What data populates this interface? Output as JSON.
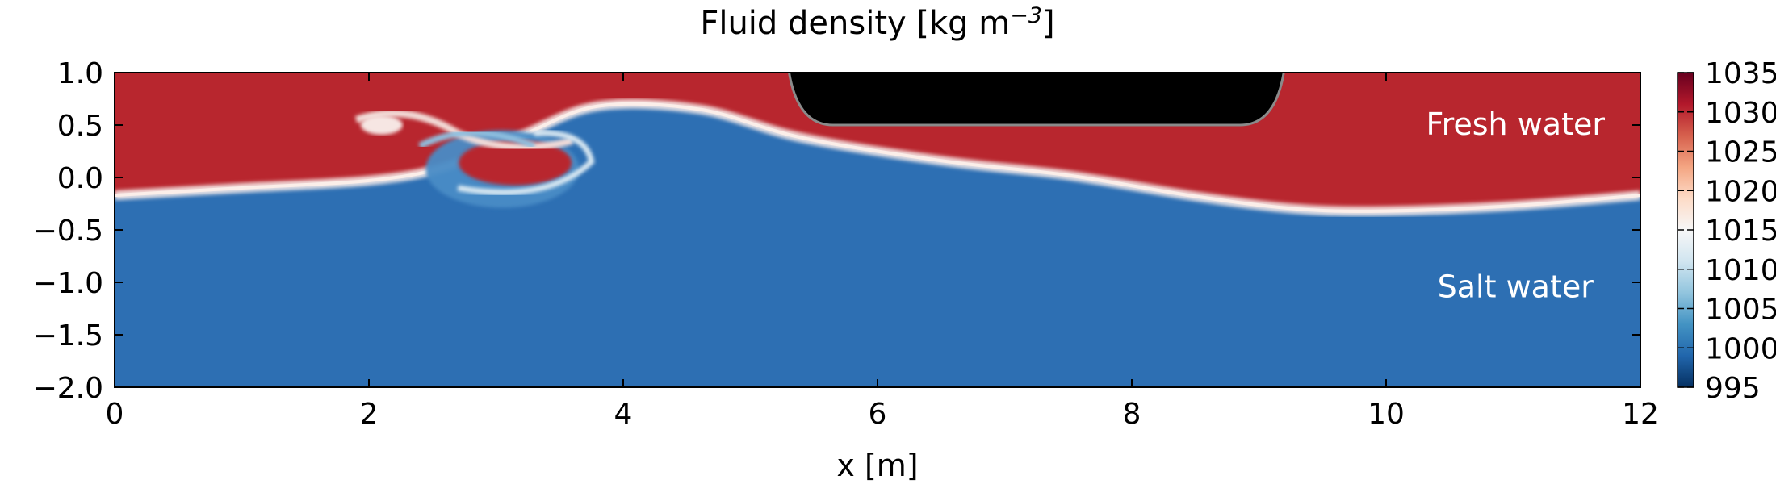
{
  "chart_data": {
    "type": "heatmap",
    "title": "Fluid density [kg m",
    "title_superscript": "−3",
    "title_suffix": "]",
    "xlabel": "x [m]",
    "ylabel": "",
    "xlim": [
      0,
      12
    ],
    "ylim": [
      -2.0,
      1.0
    ],
    "x_ticks": [
      0,
      2,
      4,
      6,
      8,
      10,
      12
    ],
    "x_tick_labels": [
      "0",
      "2",
      "4",
      "6",
      "8",
      "10",
      "12"
    ],
    "y_ticks": [
      1.0,
      0.5,
      0.0,
      -0.5,
      -1.0,
      -1.5,
      -2.0
    ],
    "y_tick_labels": [
      "1.0",
      "0.5",
      "0.0",
      "−0.5",
      "−1.0",
      "−1.5",
      "−2.0"
    ],
    "colorbar": {
      "range": [
        995,
        1035
      ],
      "ticks": [
        1035,
        1030,
        1025,
        1020,
        1015,
        1010,
        1005,
        1000,
        995
      ],
      "tick_labels": [
        "1035",
        "1030",
        "1025",
        "1020",
        "1015",
        "1010",
        "1005",
        "1000",
        "995"
      ],
      "colormap": "RdBu_r",
      "colors": [
        "#053061",
        "#2166ac",
        "#4393c3",
        "#92c5de",
        "#d1e5f0",
        "#f7f7f7",
        "#fddbc7",
        "#f4a582",
        "#d6604d",
        "#b2182b",
        "#67001f"
      ]
    },
    "upper_layer_color": "#b8262e",
    "lower_layer_color": "#2d6fb3",
    "obstacle_color": "#000000",
    "interface": {
      "x": [
        0,
        1,
        2,
        2.6,
        3.2,
        3.8,
        4.6,
        5.4,
        6.5,
        7.5,
        8.5,
        9.3,
        10.0,
        11.0,
        12.0
      ],
      "y": [
        -0.17,
        -0.1,
        -0.03,
        0.1,
        0.4,
        0.68,
        0.65,
        0.38,
        0.16,
        0.02,
        -0.18,
        -0.3,
        -0.32,
        -0.27,
        -0.17
      ]
    },
    "obstacle": {
      "x_range": [
        5.3,
        9.2
      ],
      "y_bottom": 0.5,
      "y_top": 1.0
    },
    "annotations": [
      {
        "text": "Fresh water",
        "x": 10.7,
        "y": 0.5
      },
      {
        "text": "Salt water",
        "x": 10.7,
        "y": -1.05
      }
    ]
  }
}
